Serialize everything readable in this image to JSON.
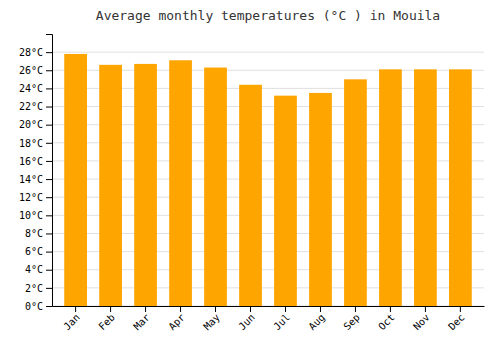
{
  "chart_data": {
    "type": "bar",
    "title": "Average monthly temperatures (°C ) in Mouila",
    "categories": [
      "Jan",
      "Feb",
      "Mar",
      "Apr",
      "May",
      "Jun",
      "Jul",
      "Aug",
      "Sep",
      "Oct",
      "Nov",
      "Dec"
    ],
    "values": [
      27.8,
      26.6,
      26.7,
      27.1,
      26.3,
      24.4,
      23.2,
      23.5,
      25.0,
      26.1,
      26.1,
      26.1
    ],
    "color": "#FFA500",
    "ylim": [
      0,
      30
    ],
    "yticks": [
      {
        "value": 0,
        "label": "0°C"
      },
      {
        "value": 2,
        "label": "2°C"
      },
      {
        "value": 4,
        "label": "4°C"
      },
      {
        "value": 6,
        "label": "6°C"
      },
      {
        "value": 8,
        "label": "8°C"
      },
      {
        "value": 10,
        "label": "10°C"
      },
      {
        "value": 12,
        "label": "12°C"
      },
      {
        "value": 14,
        "label": "14°C"
      },
      {
        "value": 16,
        "label": "16°C"
      },
      {
        "value": 18,
        "label": "18°C"
      },
      {
        "value": 20,
        "label": "20°C"
      },
      {
        "value": 22,
        "label": "22°C"
      },
      {
        "value": 24,
        "label": "24°C"
      },
      {
        "value": 26,
        "label": "26°C"
      },
      {
        "value": 28,
        "label": "28°C"
      }
    ],
    "grid": true
  }
}
